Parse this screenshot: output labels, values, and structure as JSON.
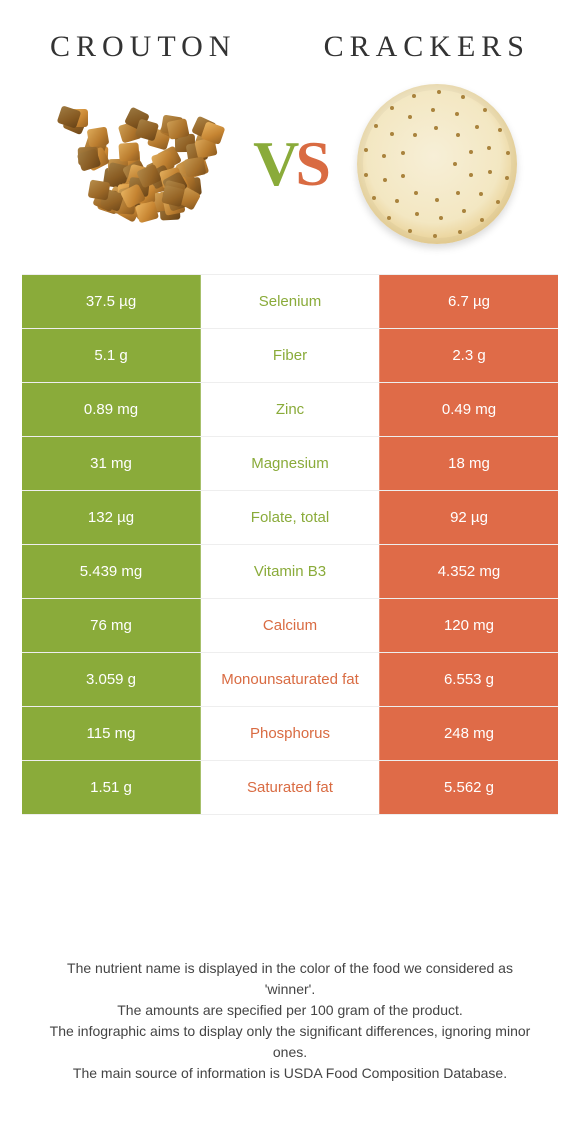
{
  "header": {
    "left_title": "Crouton",
    "right_title": "Crackers",
    "vs_v": "V",
    "vs_s": "S"
  },
  "colors": {
    "left": "#8aab3a",
    "right": "#df6b48",
    "mid_left_text": "#8aab3a",
    "mid_right_text": "#d96b42"
  },
  "rows": [
    {
      "left": "37.5 µg",
      "name": "Selenium",
      "right": "6.7 µg",
      "winner": "left"
    },
    {
      "left": "5.1 g",
      "name": "Fiber",
      "right": "2.3 g",
      "winner": "left"
    },
    {
      "left": "0.89 mg",
      "name": "Zinc",
      "right": "0.49 mg",
      "winner": "left"
    },
    {
      "left": "31 mg",
      "name": "Magnesium",
      "right": "18 mg",
      "winner": "left"
    },
    {
      "left": "132 µg",
      "name": "Folate, total",
      "right": "92 µg",
      "winner": "left"
    },
    {
      "left": "5.439 mg",
      "name": "Vitamin B3",
      "right": "4.352 mg",
      "winner": "left"
    },
    {
      "left": "76 mg",
      "name": "Calcium",
      "right": "120 mg",
      "winner": "right"
    },
    {
      "left": "3.059 g",
      "name": "Monounsaturated fat",
      "right": "6.553 g",
      "winner": "right"
    },
    {
      "left": "115 mg",
      "name": "Phosphorus",
      "right": "248 mg",
      "winner": "right"
    },
    {
      "left": "1.51 g",
      "name": "Saturated fat",
      "right": "5.562 g",
      "winner": "right"
    }
  ],
  "footer": {
    "line1": "The nutrient name is displayed in the color of the food we considered as 'winner'.",
    "line2": "The amounts are specified per 100 gram of the product.",
    "line3": "The infographic aims to display only the significant differences, ignoring minor ones.",
    "line4": "The main source of information is USDA Food Composition Database."
  }
}
